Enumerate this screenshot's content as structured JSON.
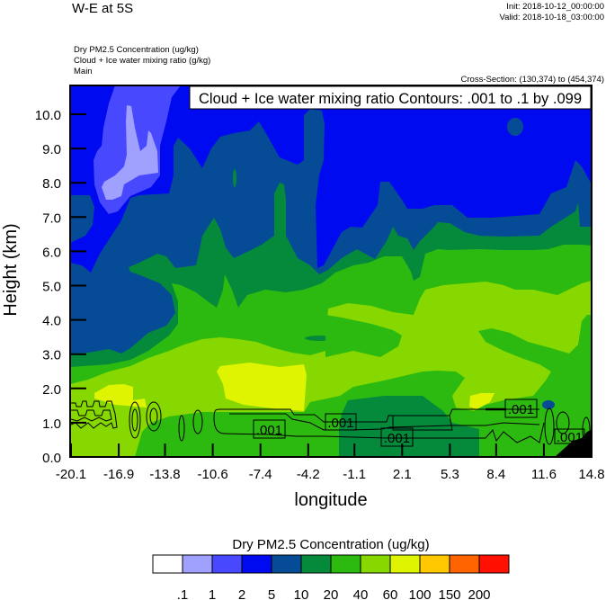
{
  "header": {
    "title": "W-E at 5S",
    "init": "Init: 2018-10-12_00:00:00",
    "valid": "Valid: 2018-10-18_03:00:00",
    "fields": [
      "Dry PM2.5 Concentration   (ug/kg)",
      "Cloud + Ice water mixing ratio   (g/kg)",
      "Main"
    ],
    "cross_section": "Cross-Section: (130,374) to (454,374)"
  },
  "chart_data": {
    "type": "heatmap",
    "subtype": "filled-contour with line-contour overlay",
    "xlabel": "longitude",
    "ylabel": "Height (km)",
    "xlim": [
      -20.1,
      14.8
    ],
    "ylim": [
      0.0,
      10.84
    ],
    "x_ticks": [
      "-20.1",
      "-16.9",
      "-13.8",
      "-10.6",
      "-7.4",
      "-4.2",
      "-1.1",
      "2.1",
      "5.3",
      "8.4",
      "11.6",
      "14.8"
    ],
    "x_tick_values": [
      -20.1,
      -16.9,
      -13.8,
      -10.6,
      -7.4,
      -4.2,
      -1.1,
      2.1,
      5.3,
      8.4,
      11.6,
      14.8
    ],
    "y_ticks": [
      "0.0",
      "1.0",
      "2.0",
      "3.0",
      "4.0",
      "5.0",
      "6.0",
      "7.0",
      "8.0",
      "9.0",
      "10.0"
    ],
    "y_tick_values": [
      0,
      1,
      2,
      3,
      4,
      5,
      6,
      7,
      8,
      9,
      10
    ],
    "contour_info": "Cloud + Ice water mixing ratio Contours: .001 to .1 by .099",
    "contour_labels": [
      ".001",
      ".001",
      ".001",
      ".001",
      ".001"
    ],
    "colorbar": {
      "title": "Dry PM2.5 Concentration  (ug/kg)",
      "levels": [
        ".1",
        "1",
        "2",
        "5",
        "10",
        "20",
        "40",
        "60",
        "100",
        "150",
        "200"
      ],
      "colors": [
        "#ffffff",
        "#a0a0ff",
        "#4848ff",
        "#000af0",
        "#064b96",
        "#058a3c",
        "#2dba10",
        "#86d800",
        "#def400",
        "#ffc800",
        "#ff6400",
        "#ff1000"
      ],
      "placement": "bottom"
    }
  }
}
